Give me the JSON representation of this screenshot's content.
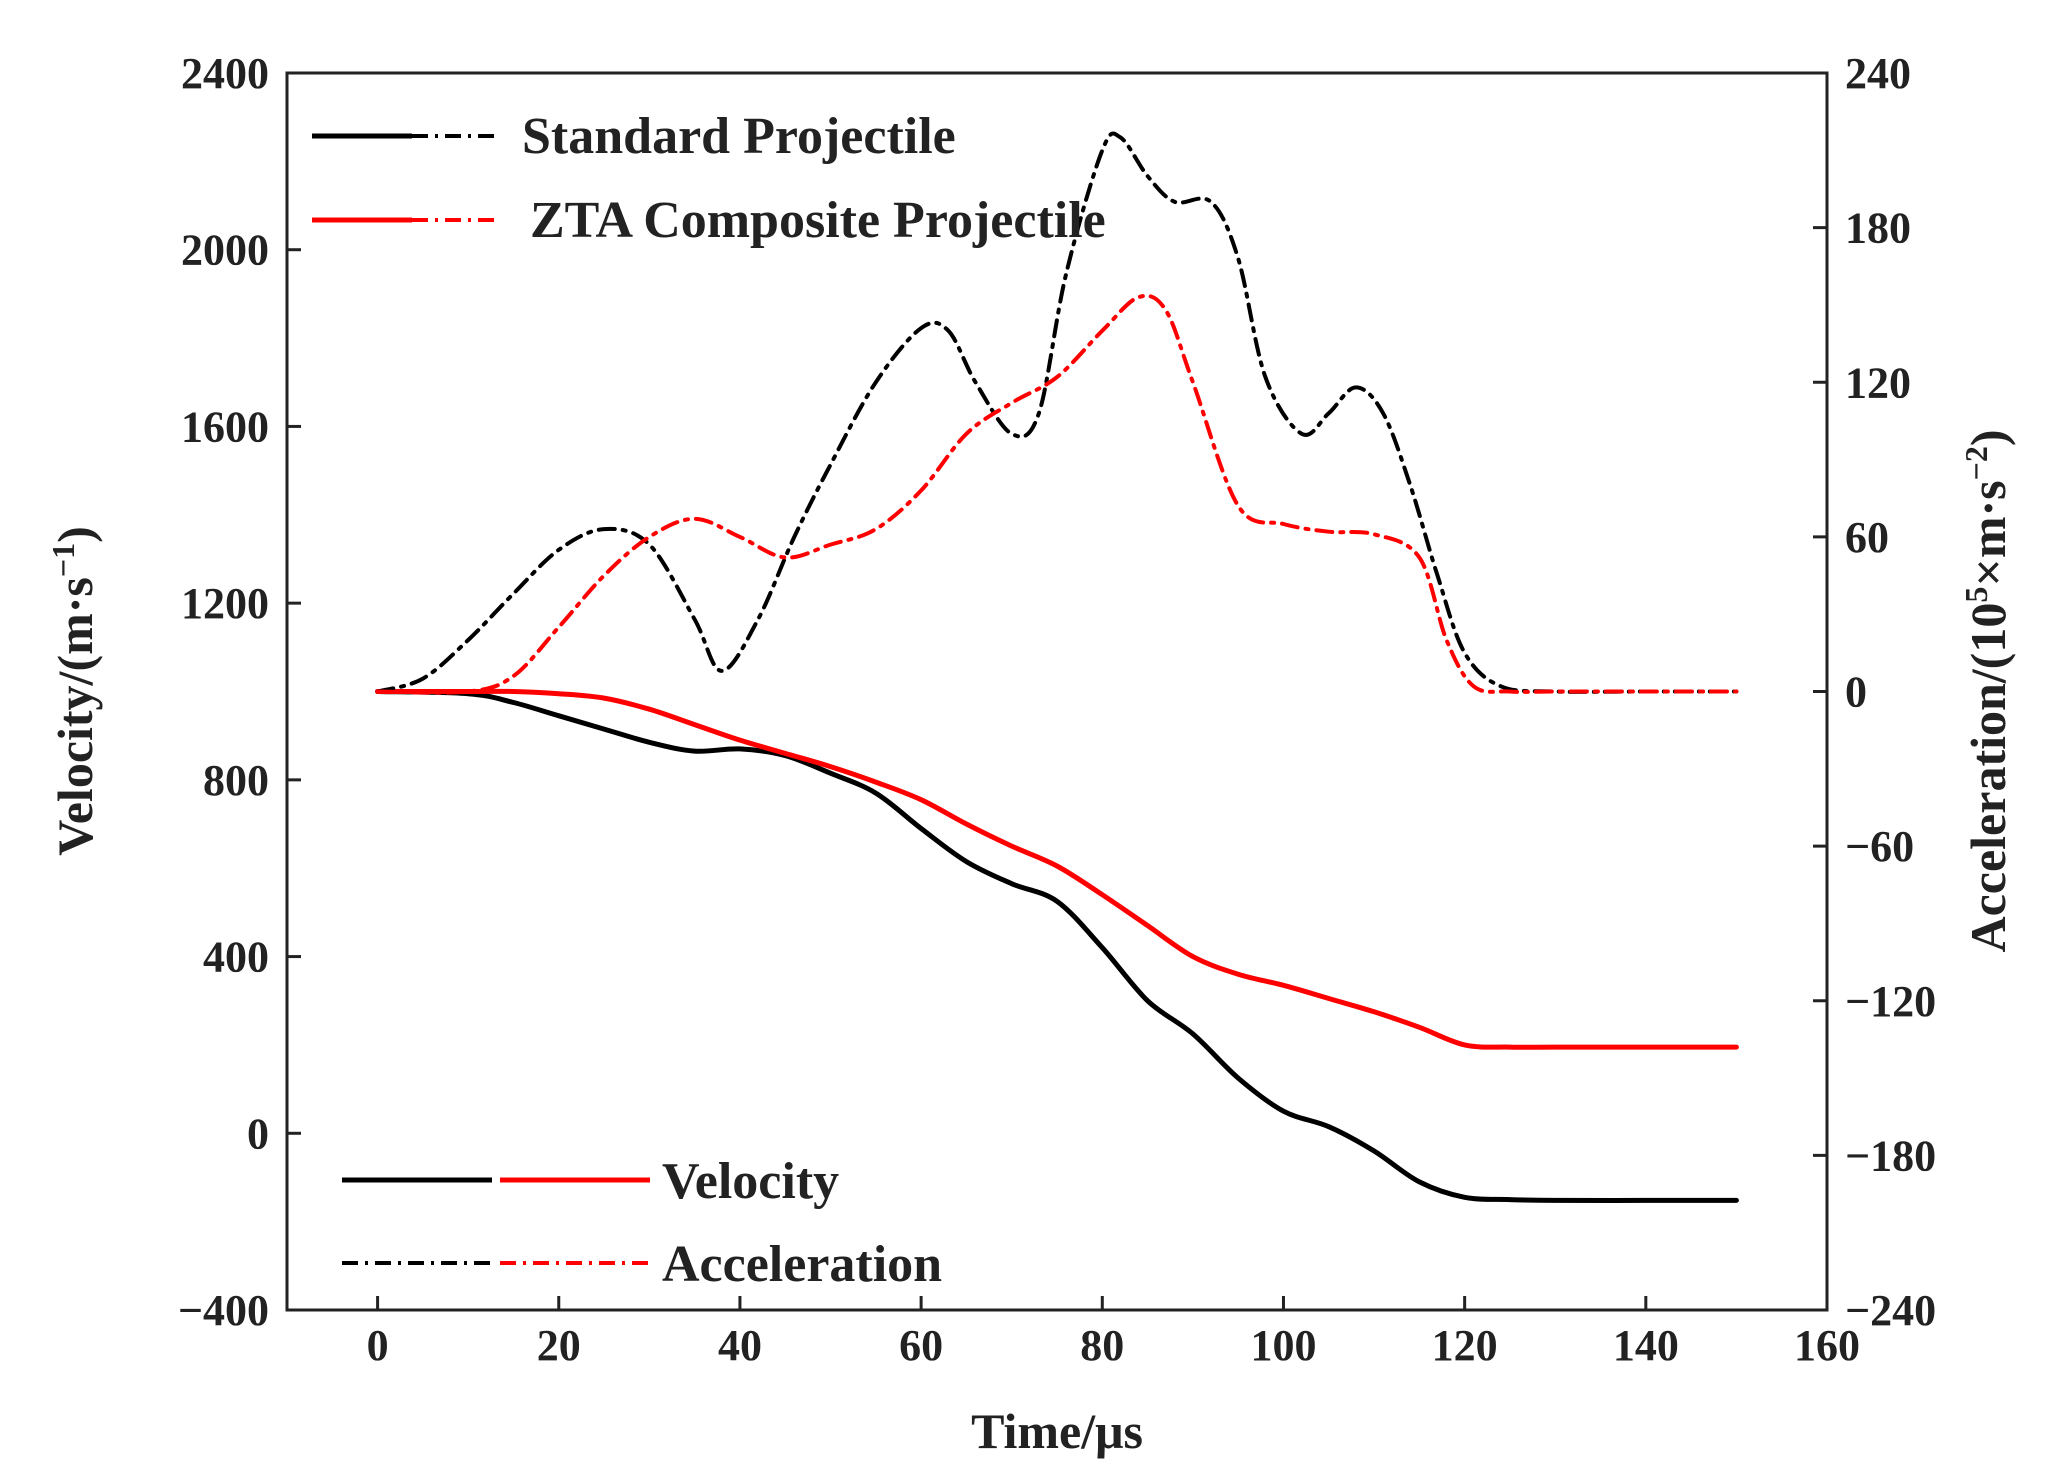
{
  "chart_data": {
    "type": "line",
    "x_axis": {
      "label": "Time/μs",
      "range": [
        -10,
        160
      ],
      "ticks": [
        0,
        20,
        40,
        60,
        80,
        100,
        120,
        140,
        160
      ]
    },
    "y_axis_left": {
      "label_main": "Velocity/(m·s",
      "label_sup": "−1",
      "label_end": ")",
      "range": [
        -400,
        2400
      ],
      "ticks": [
        -400,
        0,
        400,
        800,
        1200,
        1600,
        2000,
        2400
      ],
      "tick_labels": [
        "−400",
        "0",
        "400",
        "800",
        "1200",
        "1600",
        "2000",
        "2400"
      ]
    },
    "y_axis_right": {
      "label_main": "Acceleration/(10",
      "label_sup1": "5",
      "label_mid": "×m·s",
      "label_sup2": "−2",
      "label_end": ")",
      "range": [
        -240,
        240
      ],
      "ticks": [
        -240,
        -180,
        -120,
        -60,
        0,
        60,
        120,
        180,
        240
      ],
      "tick_labels": [
        "−240",
        "−180",
        "−120",
        "−60",
        "0",
        "60",
        "120",
        "180",
        "240"
      ]
    },
    "legend_top": [
      {
        "label": "Standard Projectile",
        "color": "#000000"
      },
      {
        "label": "ZTA Composite Projectile",
        "color": "#ff0000"
      }
    ],
    "legend_bottom": [
      {
        "label": "Velocity",
        "style": "solid"
      },
      {
        "label": "Acceleration",
        "style": "dashdot"
      }
    ],
    "series": [
      {
        "name": "Standard Projectile Velocity",
        "axis": "left",
        "style": "solid",
        "color": "#000000",
        "x": [
          0,
          10,
          15,
          20,
          25,
          30,
          35,
          40,
          45,
          50,
          55,
          60,
          65,
          70,
          75,
          80,
          85,
          90,
          95,
          100,
          105,
          110,
          115,
          120,
          125,
          130,
          140,
          150
        ],
        "y": [
          1000,
          995,
          975,
          945,
          915,
          885,
          865,
          870,
          855,
          815,
          770,
          690,
          615,
          565,
          525,
          420,
          300,
          225,
          125,
          50,
          15,
          -40,
          -110,
          -145,
          -150,
          -152,
          -152,
          -152
        ]
      },
      {
        "name": "ZTA Composite Projectile Velocity",
        "axis": "left",
        "style": "solid",
        "color": "#ff0000",
        "x": [
          0,
          10,
          15,
          20,
          25,
          30,
          35,
          40,
          45,
          50,
          55,
          60,
          65,
          70,
          75,
          80,
          85,
          90,
          95,
          100,
          105,
          110,
          115,
          120,
          125,
          130,
          140,
          150
        ],
        "y": [
          1000,
          1000,
          1000,
          995,
          985,
          960,
          925,
          890,
          860,
          830,
          795,
          755,
          700,
          650,
          605,
          540,
          470,
          400,
          360,
          335,
          305,
          275,
          240,
          200,
          195,
          195,
          195,
          195
        ]
      },
      {
        "name": "Standard Projectile Acceleration",
        "axis": "right",
        "style": "dashdot",
        "color": "#000000",
        "x": [
          0,
          5,
          10,
          15,
          20,
          25,
          30,
          35,
          38,
          42,
          46,
          50,
          55,
          60,
          63,
          66,
          70,
          73,
          76,
          80,
          82,
          85,
          88,
          92,
          95,
          98,
          102,
          105,
          108,
          111,
          114,
          117,
          120,
          124,
          130,
          140,
          150
        ],
        "y": [
          0,
          5,
          20,
          38,
          55,
          63,
          57,
          28,
          8,
          28,
          60,
          88,
          120,
          141,
          140,
          120,
          100,
          108,
          162,
          210,
          215,
          200,
          190,
          190,
          168,
          122,
          100,
          108,
          118,
          108,
          80,
          45,
          15,
          2,
          0,
          0,
          0
        ]
      },
      {
        "name": "ZTA Composite Projectile Acceleration",
        "axis": "right",
        "style": "dashdot",
        "color": "#ff0000",
        "x": [
          0,
          10,
          15,
          20,
          25,
          30,
          35,
          40,
          45,
          50,
          55,
          60,
          65,
          70,
          75,
          80,
          84,
          87,
          90,
          95,
          100,
          105,
          110,
          115,
          118,
          121,
          125,
          130,
          140,
          150
        ],
        "y": [
          0,
          0,
          6,
          25,
          45,
          60,
          67,
          60,
          52,
          57,
          63,
          78,
          100,
          112,
          122,
          140,
          153,
          148,
          120,
          72,
          65,
          62,
          61,
          52,
          20,
          2,
          0,
          0,
          0,
          0
        ]
      }
    ]
  }
}
